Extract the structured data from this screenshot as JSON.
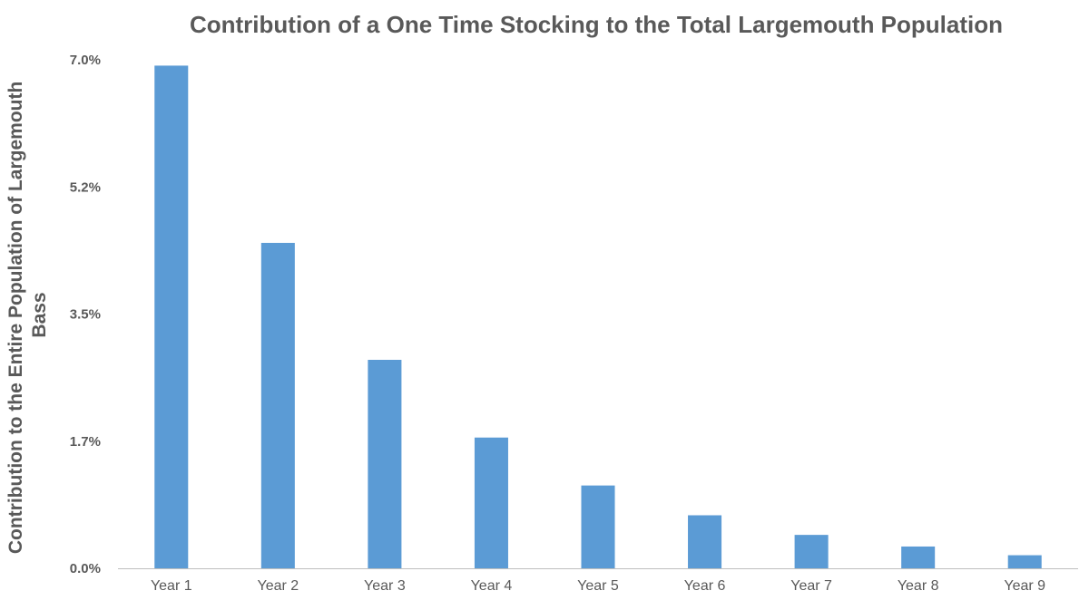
{
  "chart_data": {
    "type": "bar",
    "title": "Contribution of a One Time Stocking to the Total Largemouth Population",
    "xlabel": "",
    "ylabel": "Contribution to the Entire Population of Largemouth Bass",
    "ylabel_lines": [
      "Contribution to the Entire Population of Largemouth",
      "Bass"
    ],
    "categories": [
      "Year 1",
      "Year 2",
      "Year 3",
      "Year 4",
      "Year 5",
      "Year 6",
      "Year 7",
      "Year 8",
      "Year 9"
    ],
    "values": [
      6.92,
      4.48,
      2.87,
      1.8,
      1.14,
      0.73,
      0.46,
      0.3,
      0.18
    ],
    "ylim": [
      0,
      7.0
    ],
    "yticks": [
      0,
      1.75,
      3.5,
      5.25,
      7.0
    ],
    "ytick_labels": [
      "0.0%",
      "1.7%",
      "3.5%",
      "5.2%",
      "7.0%"
    ],
    "grid": false,
    "legend": "none",
    "bar_color": "#5b9bd5",
    "text_color": "#595959"
  }
}
